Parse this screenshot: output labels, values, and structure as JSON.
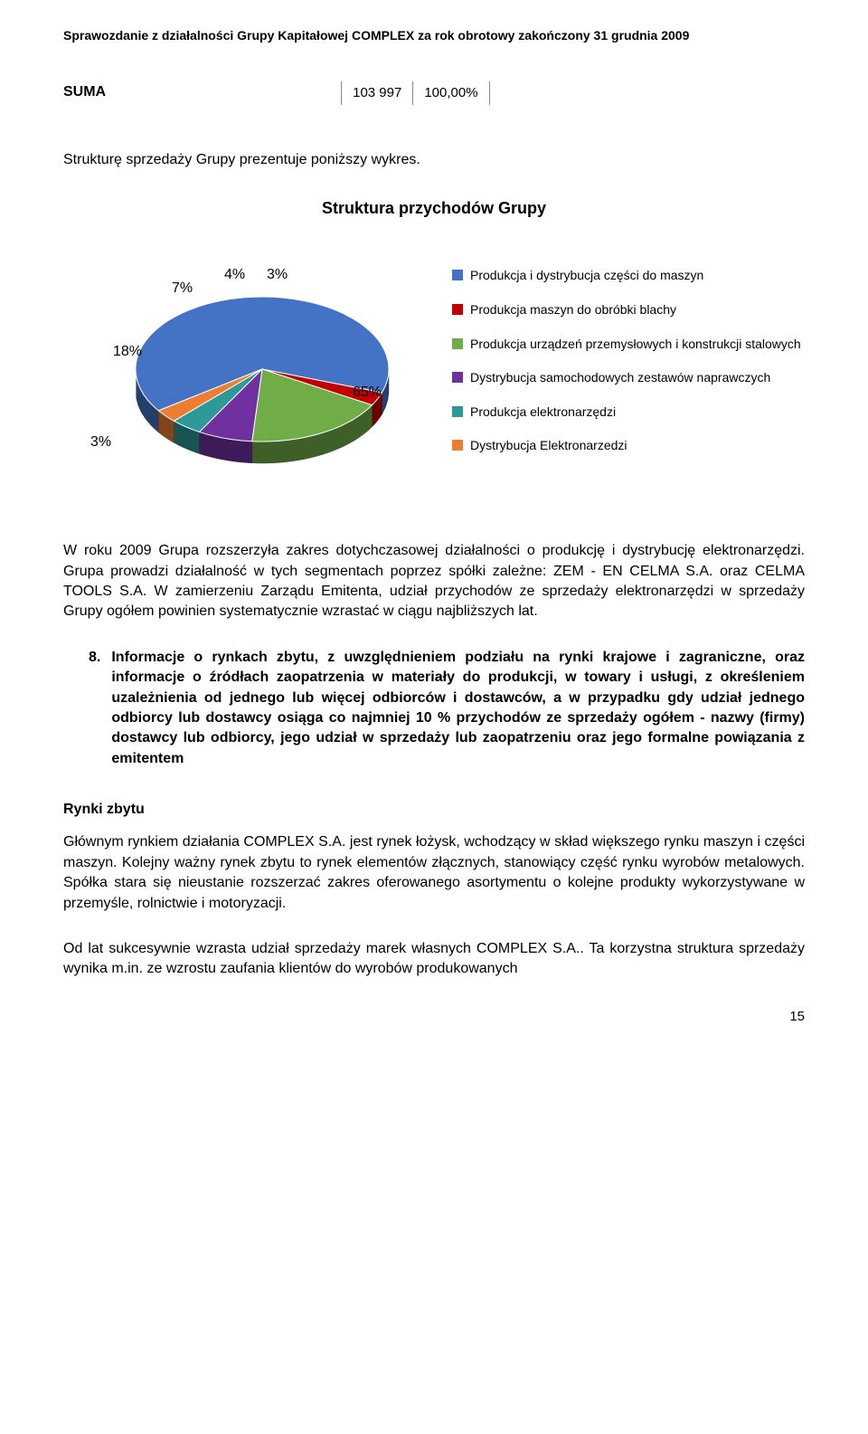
{
  "header": "Sprawozdanie z działalności Grupy Kapitałowej COMPLEX za rok obrotowy zakończony 31 grudnia 2009",
  "suma": {
    "label": "SUMA",
    "value": "103 997",
    "pct": "100,00%"
  },
  "intro": "Strukturę sprzedaży Grupy prezentuje poniższy wykres.",
  "chart": {
    "title": "Struktura przychodów Grupy",
    "type": "pie-3d",
    "background_color": "#ffffff",
    "slices": [
      {
        "label": "65%",
        "value": 65,
        "color": "#4472c4",
        "legend": "Produkcja i dystrybucja części do maszyn"
      },
      {
        "label": "3%",
        "value": 3,
        "color": "#c00000",
        "legend": "Produkcja maszyn do obróbki blachy"
      },
      {
        "label": "18%",
        "value": 18,
        "color": "#70ad47",
        "legend": "Produkcja urządzeń przemysłowych i konstrukcji stalowych"
      },
      {
        "label": "7%",
        "value": 7,
        "color": "#7030a0",
        "legend": "Dystrybucja samochodowych zestawów naprawczych"
      },
      {
        "label": "4%",
        "value": 4,
        "color": "#2e9999",
        "legend": "Produkcja elektronarzędzi"
      },
      {
        "label": "3%",
        "value": 3,
        "color": "#ed7d31",
        "legend": "Dystrybucja Elektronarzedzi"
      }
    ],
    "title_fontsize": 18,
    "label_fontsize": 16,
    "legend_fontsize": 14,
    "legend_swatch_size": 12
  },
  "para1": "W roku 2009 Grupa rozszerzyła zakres dotychczasowej działalności o produkcję i dystrybucję elektronarzędzi. Grupa prowadzi działalność w tych segmentach poprzez spółki zależne: ZEM - EN CELMA S.A. oraz CELMA TOOLS S.A. W zamierzeniu Zarządu Emitenta, udział przychodów ze sprzedaży elektronarzędzi w sprzedaży Grupy ogółem powinien systematycznie wzrastać w ciągu najbliższych lat.",
  "section8": {
    "num": "8.",
    "text": "Informacje o rynkach zbytu, z uwzględnieniem podziału na rynki krajowe i zagraniczne, oraz informacje o źródłach zaopatrzenia w materiały do produkcji, w towary i usługi, z określeniem uzależnienia od jednego lub więcej odbiorców i dostawców, a w przypadku gdy udział jednego odbiorcy lub dostawcy osiąga co najmniej 10 % przychodów ze sprzedaży ogółem - nazwy (firmy) dostawcy lub odbiorcy, jego udział w sprzedaży lub zaopatrzeniu oraz jego formalne powiązania z emitentem"
  },
  "rynki": {
    "heading": "Rynki zbytu",
    "p1": "Głównym rynkiem działania COMPLEX S.A. jest rynek łożysk, wchodzący w skład większego rynku maszyn i części maszyn. Kolejny ważny rynek zbytu to rynek elementów złącznych, stanowiący część rynku wyrobów metalowych. Spółka stara się nieustanie rozszerzać zakres oferowanego asortymentu o kolejne produkty wykorzystywane w przemyśle, rolnictwie i motoryzacji.",
    "p2": "Od lat sukcesywnie wzrasta udział sprzedaży marek własnych COMPLEX S.A.. Ta korzystna struktura sprzedaży wynika m.in. ze wzrostu zaufania klientów do wyrobów produkowanych"
  },
  "pagenum": "15"
}
